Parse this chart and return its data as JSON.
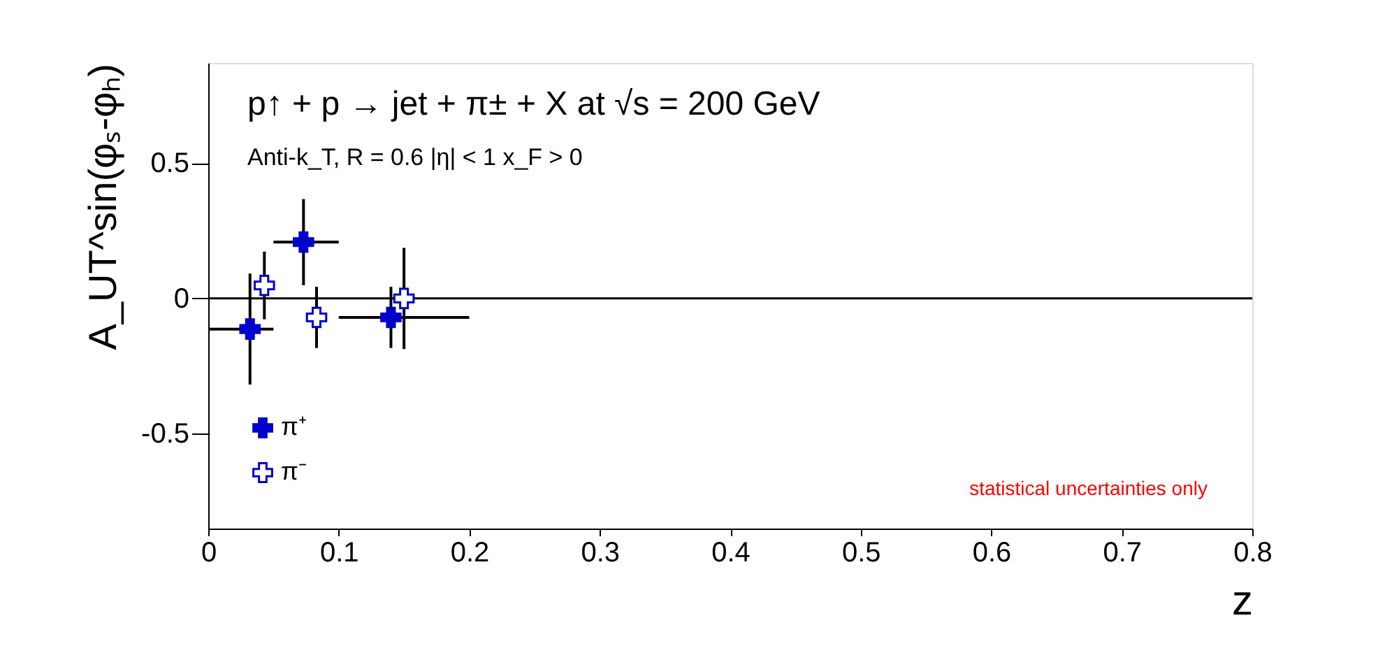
{
  "chart_data": {
    "type": "scatter",
    "title": "p↑ + p → jet + π± + X at  √s = 200 GeV",
    "subtitle": "Anti-k_T, R = 0.6   |η| < 1   x_F > 0",
    "xlabel": "z",
    "ylabel": "A_UT^sin(φₛ-φₕ)",
    "annotations": [
      "statistical uncertainties only"
    ],
    "xlim": [
      0,
      0.8
    ],
    "xticks": [
      0,
      {
        "value": 0.1,
        "label": "0.1"
      },
      {
        "value": 0.2,
        "label": "0.2"
      },
      {
        "value": 0.3,
        "label": "0.3"
      },
      {
        "value": 0.4,
        "label": "0.4"
      },
      {
        "value": 0.5,
        "label": "0.5"
      },
      {
        "value": 0.6,
        "label": "0.6"
      },
      {
        "value": 0.7,
        "label": "0.7"
      },
      {
        "value": 0.8,
        "label": "0.8"
      }
    ],
    "ylim": [
      -0.85,
      0.87
    ],
    "yticks": [
      {
        "value": -0.5,
        "label": "-0.5"
      },
      0,
      {
        "value": 0.5,
        "label": "0.5"
      }
    ],
    "grid": false,
    "legend": "bottom left",
    "marker": "cross",
    "ref_lines": [
      {
        "axis": "y",
        "value": 0,
        "color": "#000000"
      }
    ],
    "series": [
      {
        "name": "π⁺",
        "color": "#0000cc",
        "x": [
          0.032,
          0.073,
          0.14
        ],
        "values": [
          -0.113,
          0.208,
          -0.07
        ],
        "errors": [
          0.205,
          0.159,
          0.113
        ],
        "xerrors": [
          [
            0,
            0.05
          ],
          [
            0.05,
            0.1
          ],
          [
            0.1,
            0.2
          ]
        ]
      },
      {
        "name": "π⁻",
        "color": "#0000cc",
        "x": [
          0.043,
          0.083,
          0.15
        ],
        "values": [
          0.048,
          -0.07,
          0.0
        ],
        "errors": [
          0.125,
          0.113,
          0.187
        ]
      }
    ]
  }
}
